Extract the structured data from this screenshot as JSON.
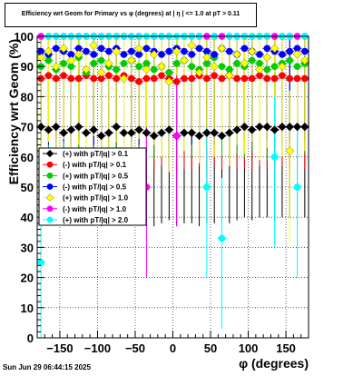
{
  "title": "Efficiency wrt Geom for Primary vs φ (degrees) at | η | <= 1.0 at pT > 0.11",
  "footer": "Sun Jun 29 06:44:15 2025",
  "chart_data": {
    "type": "scatter",
    "xlabel": "φ (degrees)",
    "ylabel": "Efficiency wrt Geom (%)",
    "xlim": [
      -180,
      180
    ],
    "ylim": [
      0,
      100
    ],
    "x_ticks": [
      -150,
      -100,
      -50,
      0,
      50,
      100,
      150
    ],
    "y_ticks": [
      0,
      10,
      20,
      30,
      40,
      50,
      60,
      70,
      80,
      90,
      100
    ],
    "grid": true,
    "legend_position": "left-middle",
    "series": [
      {
        "name": "(+) with pT/|q| > 0.1",
        "color": "#000000",
        "marker": "diamond",
        "x": [
          -175,
          -165,
          -155,
          -145,
          -135,
          -125,
          -115,
          -105,
          -95,
          -85,
          -75,
          -65,
          -55,
          -45,
          -35,
          -25,
          -15,
          -5,
          5,
          15,
          25,
          35,
          45,
          55,
          65,
          75,
          85,
          95,
          105,
          115,
          125,
          135,
          145,
          155,
          165,
          175
        ],
        "y": [
          70,
          69,
          70,
          68,
          69,
          70,
          68,
          69,
          67,
          68,
          70,
          68,
          68,
          69,
          68,
          67,
          68,
          69,
          67,
          68,
          68,
          67,
          68,
          68,
          67,
          68,
          69,
          70,
          69,
          70,
          70,
          69,
          70,
          70,
          70,
          70
        ]
      },
      {
        "name": "(-) with pT/|q| > 0.1",
        "color": "#ff0000",
        "marker": "circle",
        "x": [
          -175,
          -165,
          -155,
          -145,
          -135,
          -125,
          -115,
          -105,
          -95,
          -85,
          -75,
          -65,
          -55,
          -45,
          -35,
          -25,
          -15,
          -5,
          5,
          15,
          25,
          35,
          45,
          55,
          65,
          75,
          85,
          95,
          105,
          115,
          125,
          135,
          145,
          155,
          165,
          175
        ],
        "y": [
          86,
          87,
          86,
          87,
          86,
          86,
          87,
          86,
          86,
          87,
          86,
          87,
          86,
          85,
          86,
          86,
          87,
          86,
          85,
          86,
          86,
          87,
          86,
          87,
          86,
          87,
          86,
          86,
          86,
          87,
          86,
          86,
          87,
          86,
          86,
          86
        ]
      },
      {
        "name": "(+) with pT/|q| > 0.5",
        "color": "#00cc00",
        "marker": "circle",
        "x": [
          -175,
          -165,
          -155,
          -145,
          -135,
          -125,
          -115,
          -105,
          -95,
          -85,
          -75,
          -65,
          -55,
          -45,
          -35,
          -25,
          -15,
          -5,
          5,
          15,
          25,
          35,
          45,
          55,
          65,
          75,
          85,
          95,
          105,
          115,
          125,
          135,
          145,
          155,
          165,
          175
        ],
        "y": [
          90,
          92,
          89,
          91,
          90,
          93,
          88,
          91,
          92,
          90,
          89,
          91,
          92,
          90,
          91,
          89,
          90,
          88,
          91,
          92,
          90,
          89,
          91,
          93,
          90,
          89,
          91,
          90,
          92,
          91,
          89,
          90,
          91,
          92,
          90,
          91
        ]
      },
      {
        "name": "(-) with pT/|q| > 0.5",
        "color": "#0000ff",
        "marker": "circle",
        "x": [
          -175,
          -165,
          -155,
          -145,
          -135,
          -125,
          -115,
          -105,
          -95,
          -85,
          -75,
          -65,
          -55,
          -45,
          -35,
          -25,
          -15,
          -5,
          5,
          15,
          25,
          35,
          45,
          55,
          65,
          75,
          85,
          95,
          105,
          115,
          125,
          135,
          145,
          155,
          165,
          175
        ],
        "y": [
          95,
          94,
          96,
          95,
          94,
          96,
          95,
          94,
          96,
          95,
          96,
          94,
          95,
          94,
          96,
          95,
          94,
          95,
          96,
          95,
          94,
          96,
          95,
          94,
          96,
          95,
          94,
          96,
          95,
          94,
          96,
          95,
          94,
          95,
          96,
          95
        ]
      },
      {
        "name": "(+) with pT/|q| > 1.0",
        "color": "#ffff00",
        "marker": "diamond",
        "x": [
          -175,
          -165,
          -155,
          -145,
          -135,
          -125,
          -115,
          -105,
          -95,
          -85,
          -75,
          -65,
          -55,
          -45,
          -35,
          -25,
          -15,
          -5,
          5,
          15,
          25,
          35,
          45,
          55,
          65,
          75,
          85,
          95,
          105,
          115,
          125,
          135,
          145,
          155,
          165,
          175
        ],
        "y": [
          93,
          95,
          90,
          96,
          92,
          94,
          89,
          97,
          88,
          91,
          95,
          86,
          92,
          96,
          89,
          94,
          90,
          85,
          95,
          92,
          97,
          88,
          93,
          90,
          96,
          87,
          94,
          91,
          95,
          89,
          93,
          96,
          90,
          62,
          94,
          92
        ]
      },
      {
        "name": "(-) with pT/|q| > 1.0",
        "color": "#ff00ff",
        "marker": "circle",
        "x": [
          -175,
          -165,
          -155,
          -145,
          -135,
          -125,
          -115,
          -105,
          -95,
          -85,
          -75,
          -65,
          -55,
          -45,
          -35,
          -25,
          -15,
          -5,
          5,
          15,
          25,
          35,
          45,
          55,
          65,
          75,
          85,
          95,
          105,
          115,
          125,
          135,
          145,
          155,
          165,
          175
        ],
        "y": [
          100,
          100,
          100,
          100,
          100,
          100,
          100,
          100,
          100,
          100,
          100,
          100,
          100,
          100,
          50,
          100,
          100,
          100,
          67,
          100,
          100,
          100,
          100,
          100,
          100,
          100,
          100,
          100,
          100,
          100,
          100,
          100,
          100,
          100,
          100,
          100
        ]
      },
      {
        "name": "(+) with pT/|q| > 2.0",
        "color": "#00ffff",
        "marker": "circle",
        "x": [
          -175,
          -165,
          -155,
          -145,
          -135,
          -125,
          -115,
          -105,
          -95,
          -85,
          -75,
          -65,
          -55,
          -45,
          -35,
          -25,
          -15,
          -5,
          5,
          15,
          25,
          35,
          45,
          55,
          65,
          75,
          85,
          95,
          105,
          115,
          125,
          135,
          145,
          155,
          165,
          175
        ],
        "y": [
          25,
          100,
          100,
          100,
          100,
          100,
          100,
          100,
          100,
          100,
          100,
          100,
          100,
          100,
          100,
          100,
          100,
          100,
          100,
          100,
          100,
          100,
          50,
          100,
          33,
          100,
          100,
          100,
          100,
          100,
          100,
          60,
          100,
          100,
          50,
          100
        ]
      }
    ]
  }
}
